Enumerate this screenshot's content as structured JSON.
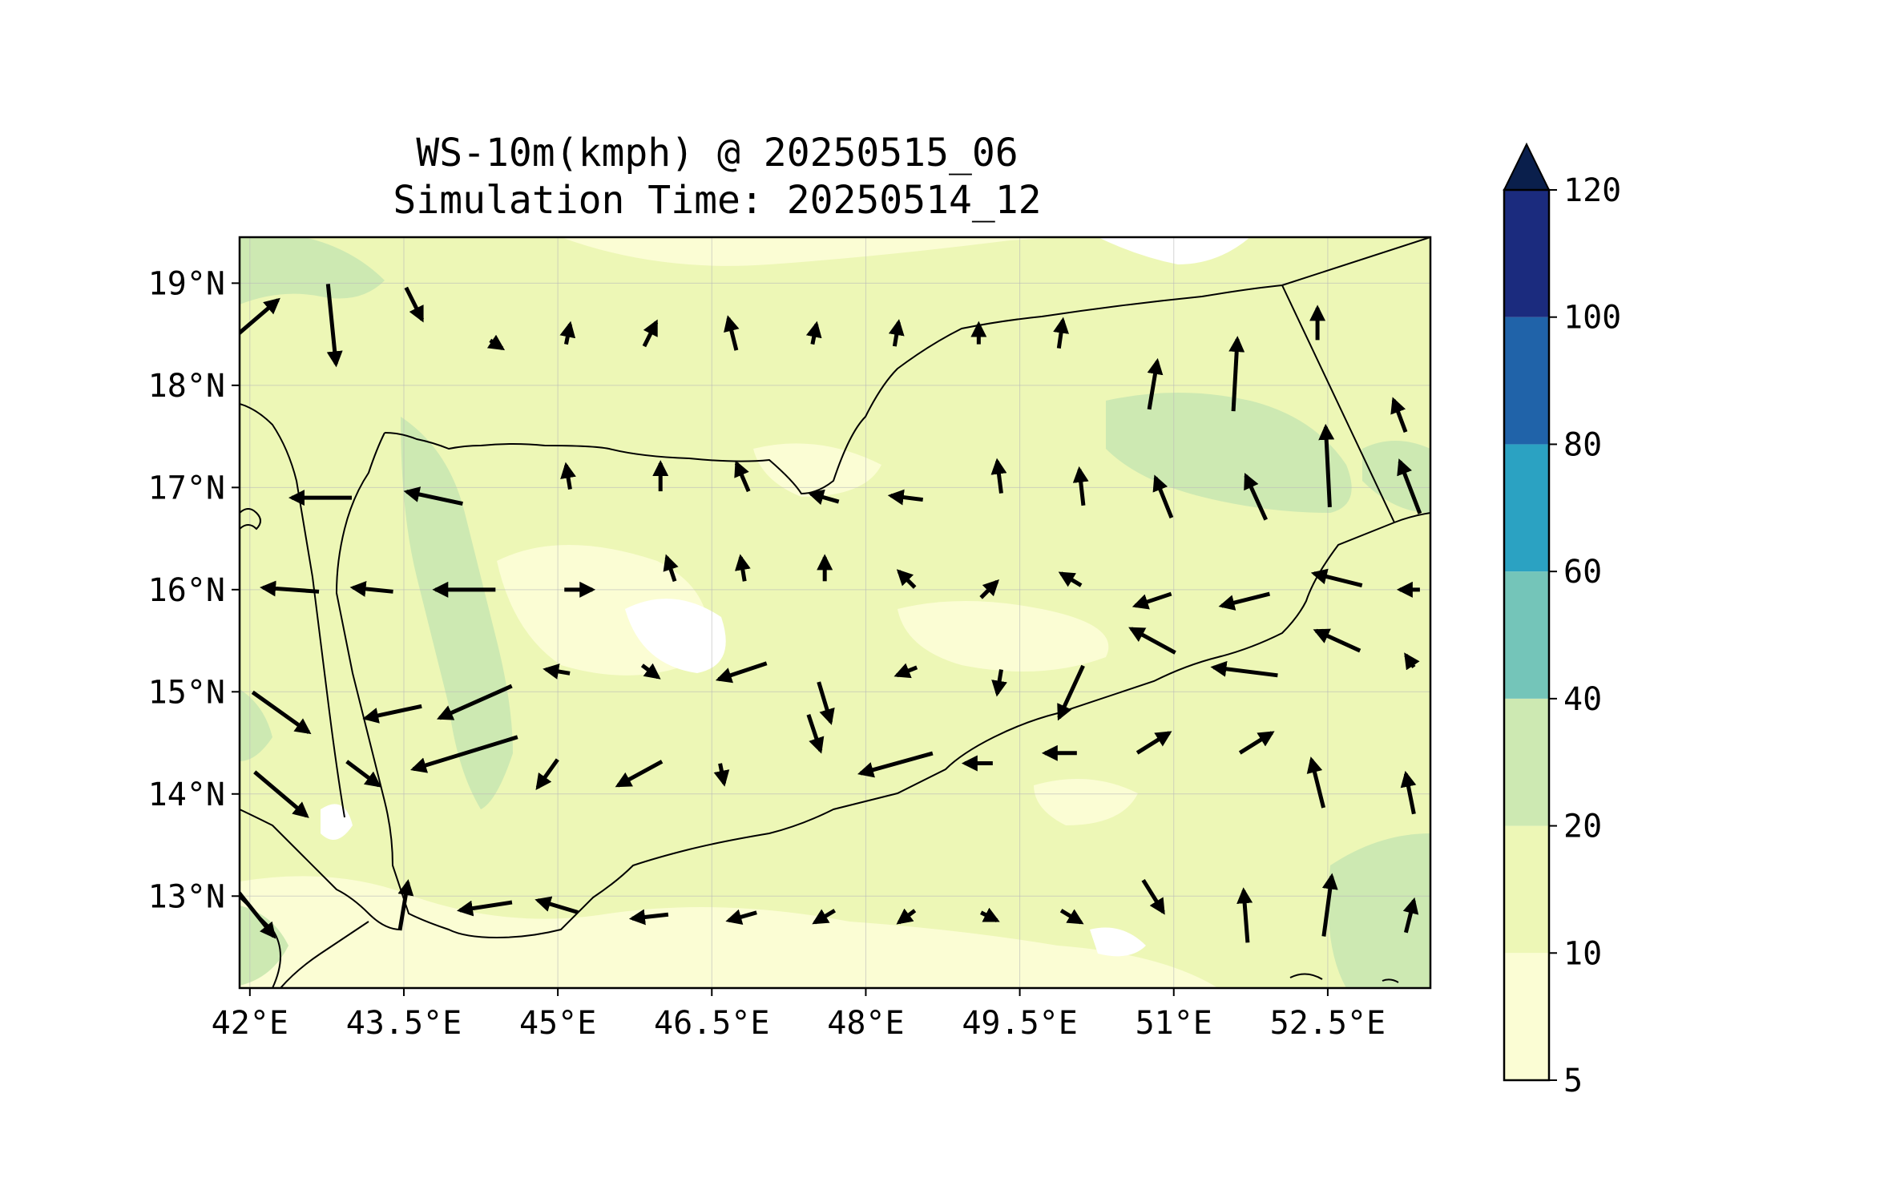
{
  "title": {
    "line1": "WS-10m(kmph) @ 20250515_06",
    "line2": "Simulation Time: 20250514_12"
  },
  "map": {
    "lon_range": [
      41.9,
      53.5
    ],
    "lat_range": [
      12.1,
      19.45
    ],
    "x_ticks": [
      {
        "value": 42,
        "label": "42°E"
      },
      {
        "value": 43.5,
        "label": "43.5°E"
      },
      {
        "value": 45,
        "label": "45°E"
      },
      {
        "value": 46.5,
        "label": "46.5°E"
      },
      {
        "value": 48,
        "label": "48°E"
      },
      {
        "value": 49.5,
        "label": "49.5°E"
      },
      {
        "value": 51,
        "label": "51°E"
      },
      {
        "value": 52.5,
        "label": "52.5°E"
      }
    ],
    "y_ticks": [
      {
        "value": 13,
        "label": "13°N"
      },
      {
        "value": 14,
        "label": "14°N"
      },
      {
        "value": 15,
        "label": "15°N"
      },
      {
        "value": 16,
        "label": "16°N"
      },
      {
        "value": 17,
        "label": "17°N"
      },
      {
        "value": 18,
        "label": "18°N"
      },
      {
        "value": 19,
        "label": "19°N"
      }
    ],
    "grid": true
  },
  "colorbar": {
    "levels": [
      5,
      10,
      20,
      40,
      60,
      80,
      100,
      120
    ],
    "labels": [
      "5",
      "10",
      "20",
      "40",
      "60",
      "80",
      "100",
      "120"
    ],
    "colors": [
      "#fbfdd4",
      "#edf7b6",
      "#cde9b2",
      "#74c5b9",
      "#2ba2c2",
      "#2063a9",
      "#1b2b7e"
    ],
    "extend_color": "#0a1f4c"
  },
  "chart_data": {
    "type": "contourf with wind vectors",
    "variable": "WS-10m(kmph)",
    "levels": [
      5,
      10,
      20,
      40,
      60,
      80,
      100,
      120
    ],
    "wind_vectors_kmph": [
      {
        "lon": 42.0,
        "lat": 18.6,
        "u": 14,
        "v": 12
      },
      {
        "lon": 42.8,
        "lat": 18.6,
        "u": 2,
        "v": -20
      },
      {
        "lon": 43.6,
        "lat": 18.8,
        "u": 4,
        "v": -8
      },
      {
        "lon": 44.4,
        "lat": 18.4,
        "u": 3,
        "v": -2
      },
      {
        "lon": 45.1,
        "lat": 18.5,
        "u": 1,
        "v": 5
      },
      {
        "lon": 45.9,
        "lat": 18.5,
        "u": 3,
        "v": 6
      },
      {
        "lon": 46.7,
        "lat": 18.5,
        "u": -2,
        "v": 8
      },
      {
        "lon": 47.5,
        "lat": 18.5,
        "u": 1,
        "v": 5
      },
      {
        "lon": 48.3,
        "lat": 18.5,
        "u": 1,
        "v": 6
      },
      {
        "lon": 49.1,
        "lat": 18.5,
        "u": 0,
        "v": 5
      },
      {
        "lon": 49.9,
        "lat": 18.5,
        "u": 1,
        "v": 7
      },
      {
        "lon": 50.8,
        "lat": 18.0,
        "u": 2,
        "v": 12
      },
      {
        "lon": 51.6,
        "lat": 18.1,
        "u": 1,
        "v": 18
      },
      {
        "lon": 52.4,
        "lat": 18.6,
        "u": 0,
        "v": 8
      },
      {
        "lon": 53.2,
        "lat": 17.7,
        "u": -3,
        "v": 8
      },
      {
        "lon": 42.7,
        "lat": 16.9,
        "u": -15,
        "v": 0
      },
      {
        "lon": 43.8,
        "lat": 16.9,
        "u": -14,
        "v": 3
      },
      {
        "lon": 45.1,
        "lat": 17.1,
        "u": -1,
        "v": 6
      },
      {
        "lon": 46.0,
        "lat": 17.1,
        "u": 0,
        "v": 7
      },
      {
        "lon": 46.8,
        "lat": 17.1,
        "u": -3,
        "v": 7
      },
      {
        "lon": 47.6,
        "lat": 16.9,
        "u": -7,
        "v": 2
      },
      {
        "lon": 48.4,
        "lat": 16.9,
        "u": -8,
        "v": 1
      },
      {
        "lon": 49.3,
        "lat": 17.1,
        "u": -1,
        "v": 8
      },
      {
        "lon": 50.1,
        "lat": 17.0,
        "u": -1,
        "v": 9
      },
      {
        "lon": 50.9,
        "lat": 16.9,
        "u": -4,
        "v": 10
      },
      {
        "lon": 51.8,
        "lat": 16.9,
        "u": -5,
        "v": 11
      },
      {
        "lon": 52.5,
        "lat": 17.2,
        "u": -1,
        "v": 20
      },
      {
        "lon": 53.3,
        "lat": 17.0,
        "u": -5,
        "v": 13
      },
      {
        "lon": 42.4,
        "lat": 16.0,
        "u": -14,
        "v": 1
      },
      {
        "lon": 43.2,
        "lat": 16.0,
        "u": -10,
        "v": 1
      },
      {
        "lon": 44.1,
        "lat": 16.0,
        "u": -15,
        "v": 0
      },
      {
        "lon": 45.2,
        "lat": 16.0,
        "u": 7,
        "v": 0
      },
      {
        "lon": 46.1,
        "lat": 16.2,
        "u": -2,
        "v": 6
      },
      {
        "lon": 46.8,
        "lat": 16.2,
        "u": -1,
        "v": 6
      },
      {
        "lon": 47.6,
        "lat": 16.2,
        "u": 0,
        "v": 6
      },
      {
        "lon": 48.4,
        "lat": 16.1,
        "u": -4,
        "v": 4
      },
      {
        "lon": 49.2,
        "lat": 16.0,
        "u": 4,
        "v": 4
      },
      {
        "lon": 50.0,
        "lat": 16.1,
        "u": -5,
        "v": 3
      },
      {
        "lon": 50.8,
        "lat": 15.9,
        "u": -9,
        "v": -3
      },
      {
        "lon": 51.7,
        "lat": 15.9,
        "u": -12,
        "v": -3
      },
      {
        "lon": 52.6,
        "lat": 16.1,
        "u": -12,
        "v": 3
      },
      {
        "lon": 53.3,
        "lat": 16.0,
        "u": -5,
        "v": 0
      },
      {
        "lon": 42.3,
        "lat": 14.8,
        "u": 14,
        "v": -10
      },
      {
        "lon": 43.4,
        "lat": 14.8,
        "u": -14,
        "v": -3
      },
      {
        "lon": 44.2,
        "lat": 14.9,
        "u": -18,
        "v": -8
      },
      {
        "lon": 45.0,
        "lat": 15.2,
        "u": -6,
        "v": 1
      },
      {
        "lon": 45.9,
        "lat": 15.2,
        "u": 4,
        "v": -3
      },
      {
        "lon": 46.8,
        "lat": 15.2,
        "u": -12,
        "v": -4
      },
      {
        "lon": 47.6,
        "lat": 14.9,
        "u": 3,
        "v": -10
      },
      {
        "lon": 48.4,
        "lat": 15.2,
        "u": -5,
        "v": -2
      },
      {
        "lon": 49.3,
        "lat": 15.1,
        "u": -1,
        "v": -6
      },
      {
        "lon": 50.0,
        "lat": 15.0,
        "u": -6,
        "v": -13
      },
      {
        "lon": 50.8,
        "lat": 15.5,
        "u": -11,
        "v": 6
      },
      {
        "lon": 51.7,
        "lat": 15.2,
        "u": -16,
        "v": 2
      },
      {
        "lon": 52.6,
        "lat": 15.5,
        "u": -11,
        "v": 5
      },
      {
        "lon": 53.3,
        "lat": 15.3,
        "u": -2,
        "v": 3
      },
      {
        "lon": 42.3,
        "lat": 14.0,
        "u": 13,
        "v": -11
      },
      {
        "lon": 43.1,
        "lat": 14.2,
        "u": 8,
        "v": -6
      },
      {
        "lon": 44.1,
        "lat": 14.4,
        "u": -26,
        "v": -8
      },
      {
        "lon": 44.9,
        "lat": 14.2,
        "u": -5,
        "v": -7
      },
      {
        "lon": 45.8,
        "lat": 14.2,
        "u": -11,
        "v": -6
      },
      {
        "lon": 46.6,
        "lat": 14.2,
        "u": 1,
        "v": -5
      },
      {
        "lon": 47.5,
        "lat": 14.6,
        "u": 3,
        "v": -9
      },
      {
        "lon": 48.3,
        "lat": 14.3,
        "u": -18,
        "v": -5
      },
      {
        "lon": 49.1,
        "lat": 14.3,
        "u": -7,
        "v": 0
      },
      {
        "lon": 49.9,
        "lat": 14.4,
        "u": -8,
        "v": 0
      },
      {
        "lon": 50.8,
        "lat": 14.5,
        "u": 8,
        "v": 5
      },
      {
        "lon": 51.8,
        "lat": 14.5,
        "u": 8,
        "v": 5
      },
      {
        "lon": 52.4,
        "lat": 14.1,
        "u": -3,
        "v": 12
      },
      {
        "lon": 53.3,
        "lat": 14.0,
        "u": -2,
        "v": 10
      },
      {
        "lon": 42.0,
        "lat": 12.9,
        "u": 12,
        "v": -15
      },
      {
        "lon": 43.5,
        "lat": 12.9,
        "u": 2,
        "v": 12
      },
      {
        "lon": 44.3,
        "lat": 12.9,
        "u": -13,
        "v": -2
      },
      {
        "lon": 45.0,
        "lat": 12.9,
        "u": -10,
        "v": 3
      },
      {
        "lon": 45.9,
        "lat": 12.8,
        "u": -9,
        "v": -1
      },
      {
        "lon": 46.8,
        "lat": 12.8,
        "u": -7,
        "v": -2
      },
      {
        "lon": 47.6,
        "lat": 12.8,
        "u": -5,
        "v": -3
      },
      {
        "lon": 48.4,
        "lat": 12.8,
        "u": -4,
        "v": -3
      },
      {
        "lon": 49.2,
        "lat": 12.8,
        "u": 4,
        "v": -2
      },
      {
        "lon": 50.0,
        "lat": 12.8,
        "u": 5,
        "v": -3
      },
      {
        "lon": 50.8,
        "lat": 13.0,
        "u": 5,
        "v": -8
      },
      {
        "lon": 51.7,
        "lat": 12.8,
        "u": -1,
        "v": 13
      },
      {
        "lon": 52.5,
        "lat": 12.9,
        "u": 2,
        "v": 15
      },
      {
        "lon": 53.3,
        "lat": 12.8,
        "u": 2,
        "v": 8
      }
    ]
  }
}
